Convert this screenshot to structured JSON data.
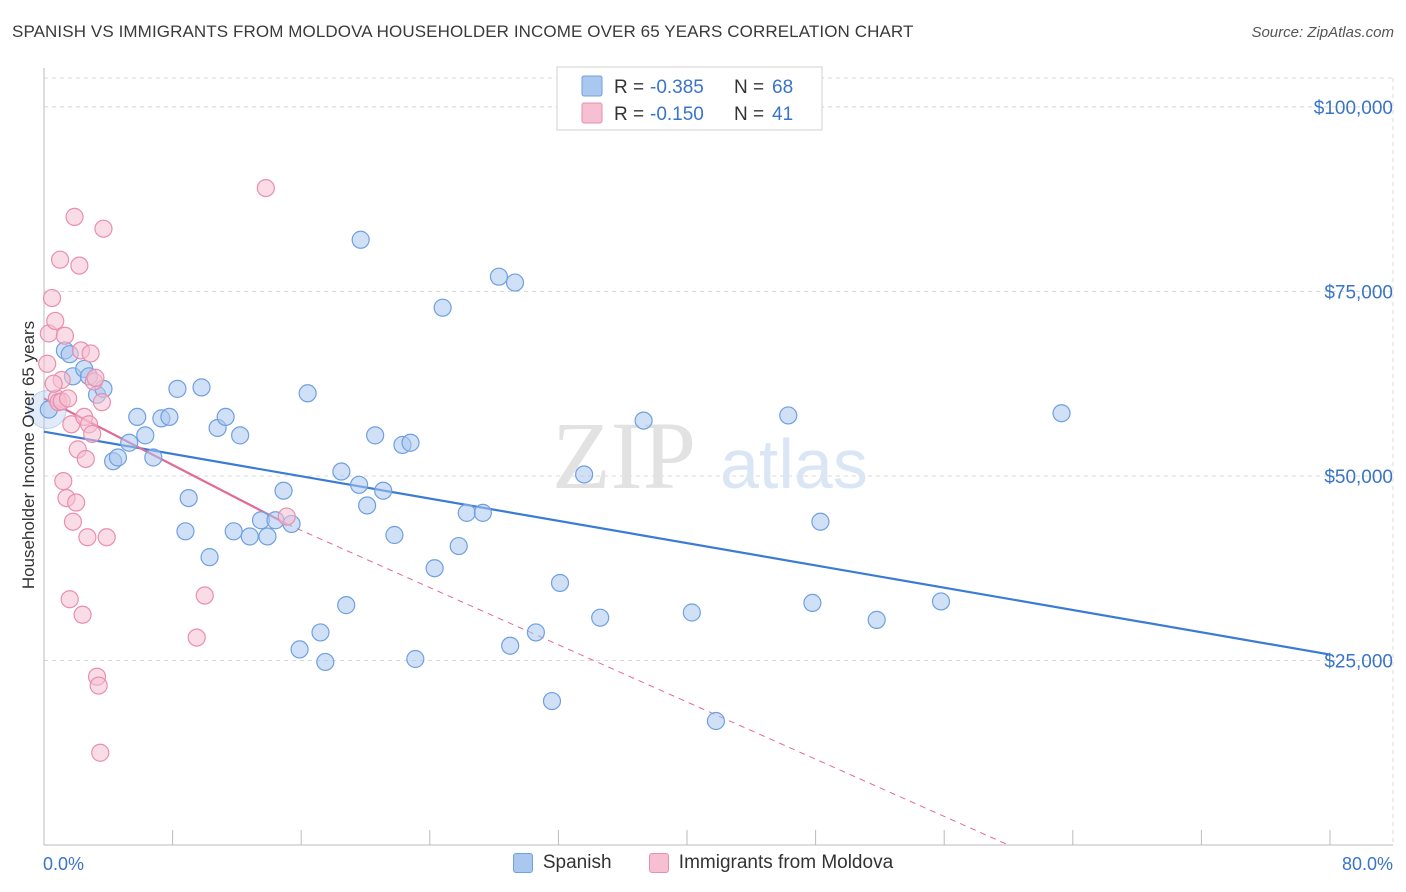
{
  "title": "SPANISH VS IMMIGRANTS FROM MOLDOVA HOUSEHOLDER INCOME OVER 65 YEARS CORRELATION CHART",
  "source": "Source: ZipAtlas.com",
  "watermark": {
    "zip": "ZIP",
    "atlas": "atlas"
  },
  "colors": {
    "blue": "#6fa0e0",
    "blue_fill": "#a9c7ef",
    "blue_line": "#3a7bd5",
    "pink": "#e88fae",
    "pink_fill": "#f6bfd2",
    "pink_line": "#e06b95",
    "axis_text": "#3a74c8",
    "grid": "#d8d8d8"
  },
  "legend_top": [
    {
      "r_label": "R = ",
      "r_value": "-0.385",
      "n_label": "N = ",
      "n_value": "68"
    },
    {
      "r_label": "R = ",
      "r_value": "-0.150",
      "n_label": "N = ",
      "n_value": "41"
    }
  ],
  "chart_data": {
    "type": "scatter",
    "xlabel": "",
    "ylabel": "Householder Income Over 65 years",
    "xlim": [
      0,
      80
    ],
    "ylim": [
      0,
      105000
    ],
    "x_tick_labels": {
      "min": "0.0%",
      "max": "80.0%"
    },
    "y_ticks": [
      25000,
      50000,
      75000,
      100000
    ],
    "y_tick_labels": [
      "$25,000",
      "$50,000",
      "$75,000",
      "$100,000"
    ],
    "series": [
      {
        "name": "Spanish",
        "color": "#6fa0e0",
        "points": [
          [
            0.3,
            59000
          ],
          [
            1.3,
            67000
          ],
          [
            1.6,
            66500
          ],
          [
            1.8,
            63500
          ],
          [
            2.5,
            64500
          ],
          [
            2.8,
            63500
          ],
          [
            3.3,
            61000
          ],
          [
            3.7,
            61800
          ],
          [
            4.3,
            52000
          ],
          [
            4.6,
            52500
          ],
          [
            5.3,
            54500
          ],
          [
            5.8,
            58000
          ],
          [
            6.3,
            55500
          ],
          [
            6.8,
            52500
          ],
          [
            7.3,
            57800
          ],
          [
            7.8,
            58000
          ],
          [
            8.3,
            61800
          ],
          [
            9.0,
            47000
          ],
          [
            8.8,
            42500
          ],
          [
            9.8,
            62000
          ],
          [
            10.3,
            39000
          ],
          [
            10.8,
            56500
          ],
          [
            11.3,
            58000
          ],
          [
            11.8,
            42500
          ],
          [
            12.2,
            55500
          ],
          [
            12.8,
            41800
          ],
          [
            13.5,
            44000
          ],
          [
            13.9,
            41800
          ],
          [
            14.4,
            44000
          ],
          [
            14.9,
            48000
          ],
          [
            15.4,
            43500
          ],
          [
            15.9,
            26500
          ],
          [
            16.4,
            61200
          ],
          [
            17.2,
            28800
          ],
          [
            17.5,
            24800
          ],
          [
            18.5,
            50600
          ],
          [
            18.8,
            32500
          ],
          [
            19.6,
            48800
          ],
          [
            20.1,
            46000
          ],
          [
            20.6,
            55500
          ],
          [
            21.1,
            48000
          ],
          [
            21.8,
            42000
          ],
          [
            22.3,
            54200
          ],
          [
            22.8,
            54500
          ],
          [
            23.1,
            25200
          ],
          [
            24.3,
            37500
          ],
          [
            24.8,
            72800
          ],
          [
            25.8,
            40500
          ],
          [
            26.3,
            45000
          ],
          [
            27.3,
            45000
          ],
          [
            28.3,
            77000
          ],
          [
            29.3,
            76200
          ],
          [
            29.0,
            27000
          ],
          [
            30.6,
            28800
          ],
          [
            31.6,
            19500
          ],
          [
            32.1,
            35500
          ],
          [
            33.6,
            50200
          ],
          [
            34.6,
            30800
          ],
          [
            37.3,
            57500
          ],
          [
            40.3,
            31500
          ],
          [
            41.8,
            16800
          ],
          [
            46.3,
            58200
          ],
          [
            47.8,
            32800
          ],
          [
            48.3,
            43800
          ],
          [
            51.8,
            30500
          ],
          [
            55.8,
            33000
          ],
          [
            63.3,
            58500
          ],
          [
            19.7,
            82000
          ]
        ],
        "trend": {
          "x0": 0,
          "y0": 56000,
          "x1": 80,
          "y1": 25800
        }
      },
      {
        "name": "Immigrants from Moldova",
        "color": "#e88fae",
        "points": [
          [
            0.2,
            65200
          ],
          [
            0.3,
            69300
          ],
          [
            0.5,
            74100
          ],
          [
            0.7,
            71000
          ],
          [
            0.8,
            60500
          ],
          [
            0.9,
            60000
          ],
          [
            1.0,
            79300
          ],
          [
            1.1,
            60100
          ],
          [
            1.2,
            49300
          ],
          [
            1.3,
            69000
          ],
          [
            1.4,
            47000
          ],
          [
            1.5,
            60500
          ],
          [
            1.6,
            33300
          ],
          [
            1.7,
            57000
          ],
          [
            1.8,
            43800
          ],
          [
            1.9,
            85100
          ],
          [
            2.0,
            46400
          ],
          [
            2.1,
            53600
          ],
          [
            2.2,
            78500
          ],
          [
            2.3,
            67000
          ],
          [
            2.4,
            31200
          ],
          [
            2.5,
            58000
          ],
          [
            2.6,
            52300
          ],
          [
            2.7,
            41700
          ],
          [
            2.8,
            57000
          ],
          [
            2.9,
            66600
          ],
          [
            3.0,
            55700
          ],
          [
            3.1,
            62800
          ],
          [
            3.2,
            63300
          ],
          [
            3.3,
            22800
          ],
          [
            3.4,
            21600
          ],
          [
            3.5,
            12500
          ],
          [
            3.6,
            60000
          ],
          [
            3.7,
            83500
          ],
          [
            3.9,
            41700
          ],
          [
            9.5,
            28100
          ],
          [
            10.0,
            33800
          ],
          [
            13.8,
            89000
          ],
          [
            15.1,
            44500
          ],
          [
            1.1,
            63000
          ],
          [
            0.6,
            62500
          ]
        ],
        "trend": {
          "x0": 0,
          "y0": 60500,
          "x1": 15.1,
          "y1": 43500
        },
        "trend_ext": {
          "x0": 15.1,
          "y0": 43500,
          "x1": 60,
          "y1": 0
        }
      }
    ]
  },
  "legend_bottom": [
    {
      "label": "Spanish"
    },
    {
      "label": "Immigrants from Moldova"
    }
  ]
}
